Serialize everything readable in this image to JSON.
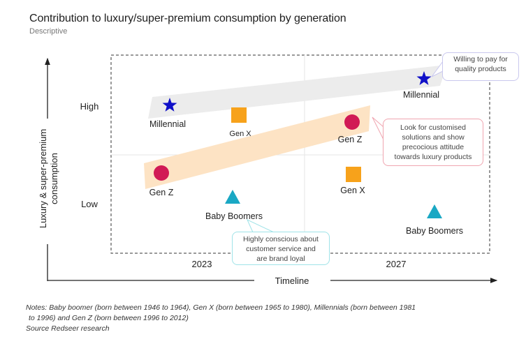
{
  "header": {
    "title": "Contribution to luxury/super-premium consumption by generation",
    "subtitle": "Descriptive"
  },
  "axes": {
    "y_label_line1": "Luxury & super-premium",
    "y_label_line2": "consumption",
    "y_high": "High",
    "y_low": "Low",
    "x_label": "Timeline",
    "x_ticks": [
      "2023",
      "2027"
    ]
  },
  "colors": {
    "millennial": "#1010c8",
    "genx": "#f7a21b",
    "genz": "#d11a55",
    "baby_boomers": "#1aa8c4",
    "millennial_band": "#ececec",
    "genz_band": "#fde3c4"
  },
  "markers": [
    {
      "id": "millennial-2023",
      "generation": "Millennial",
      "label": "Millennial",
      "year": "2023",
      "shape": "star-icon",
      "level": "High"
    },
    {
      "id": "genx-2023",
      "generation": "Gen X",
      "label": "Gen X",
      "year": "2023",
      "shape": "square-icon",
      "level": "High"
    },
    {
      "id": "genz-2023",
      "generation": "Gen Z",
      "label": "Gen Z",
      "year": "2023",
      "shape": "circle-icon",
      "level": "Low"
    },
    {
      "id": "boomers-2023",
      "generation": "Baby Boomers",
      "label": "Baby Boomers",
      "year": "2023",
      "shape": "triangle-icon",
      "level": "Low"
    },
    {
      "id": "millennial-2027",
      "generation": "Millennial",
      "label": "Millennial",
      "year": "2027",
      "shape": "star-icon",
      "level": "High"
    },
    {
      "id": "genz-2027",
      "generation": "Gen Z",
      "label": "Gen Z",
      "year": "2027",
      "shape": "circle-icon",
      "level": "High"
    },
    {
      "id": "genx-2027",
      "generation": "Gen X",
      "label": "Gen X",
      "year": "2027",
      "shape": "square-icon",
      "level": "Low"
    },
    {
      "id": "boomers-2027",
      "generation": "Baby Boomers",
      "label": "Baby Boomers",
      "year": "2027",
      "shape": "triangle-icon",
      "level": "Low"
    }
  ],
  "callouts": {
    "millennial": [
      "Willing to pay for",
      "quality products"
    ],
    "genz": [
      "Look for customised",
      "solutions and show",
      "precocious attitude",
      "towards luxury products"
    ],
    "baby_boomers": [
      "Highly conscious about",
      "customer service and",
      "are brand loyal"
    ]
  },
  "notes": {
    "line1": "Notes: Baby boomer (born between 1946 to 1964), Gen X (born between 1965 to 1980), Millennials (born between 1981",
    "line2": "to 1996) and Gen Z (born between 1996 to 2012)",
    "source": "Source Redseer research"
  }
}
